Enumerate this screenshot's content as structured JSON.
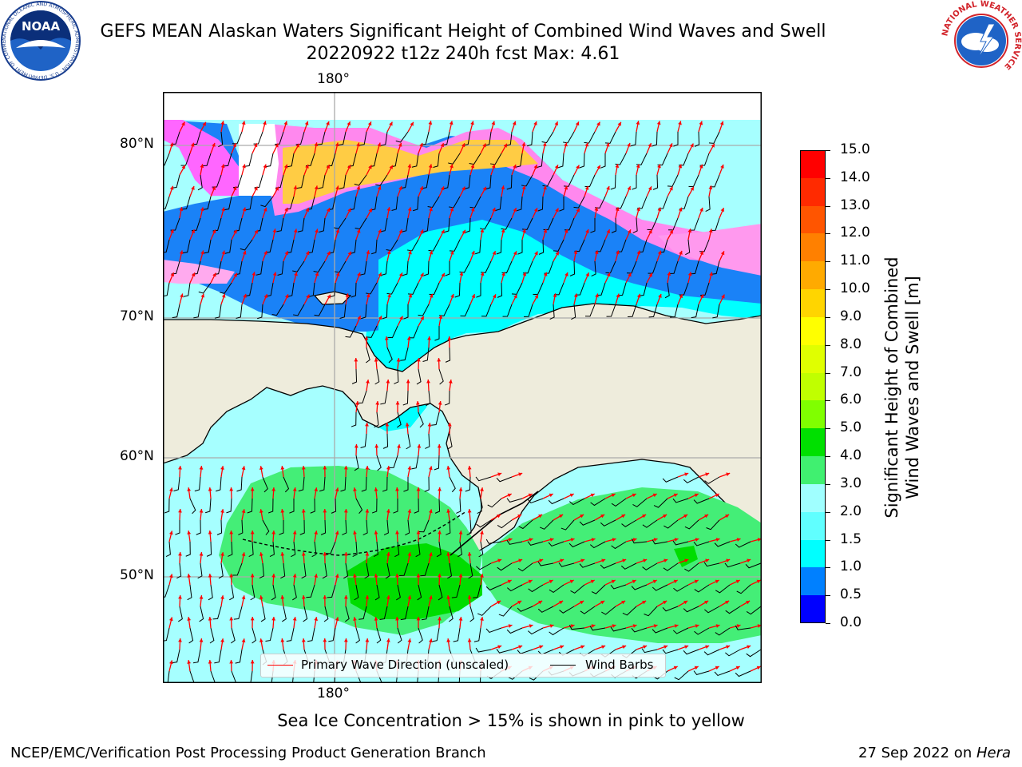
{
  "header": {
    "title_line1": "GEFS MEAN Alaskan Waters Significant Height of Combined Wind Waves and Swell",
    "title_line2": "20220922 t12z 240h fcst   Max: 4.61"
  },
  "logos": {
    "left": {
      "name": "noaa-logo",
      "text": "NOAA",
      "ring_text": "NATIONAL OCEANIC AND ATMOSPHERIC ADMINISTRATION · U.S. DEPARTMENT OF COMMERCE"
    },
    "right": {
      "name": "nws-logo",
      "ring_text": "NATIONAL WEATHER SERVICE"
    }
  },
  "map": {
    "lon_label_top": "180°",
    "lon_label_bottom": "180°",
    "lat_labels": [
      "80°N",
      "70°N",
      "60°N",
      "50°N"
    ],
    "colors": {
      "land": "#eeecdc",
      "coast": "#000000",
      "grid": "#aaaaaa",
      "wave_arrow": "#ff0000",
      "wind_barb": "#000000"
    }
  },
  "colorbar": {
    "label_line1": "Significant Height of Combined",
    "label_line2": "Wind Waves and Swell [m]",
    "ticks": [
      "15.0",
      "14.0",
      "13.0",
      "12.0",
      "11.0",
      "10.0",
      "9.0",
      "8.0",
      "7.0",
      "6.0",
      "5.0",
      "4.0",
      "3.0",
      "2.0",
      "1.5",
      "1.0",
      "0.5",
      "0.0"
    ],
    "colors_top_to_bottom": [
      "#ff0000",
      "#ff2a00",
      "#ff5500",
      "#ff8000",
      "#ffaa00",
      "#ffd500",
      "#ffff00",
      "#e0ff00",
      "#c0ff00",
      "#80ff00",
      "#00e000",
      "#40f070",
      "#a0ffff",
      "#60ffff",
      "#00ffff",
      "#0080ff",
      "#0000ff"
    ]
  },
  "legend": {
    "wave_label": "Primary Wave Direction (unscaled)",
    "barb_label": "Wind Barbs"
  },
  "note": "Sea Ice Concentration > 15% is shown in pink to yellow",
  "footer": {
    "left": "NCEP/EMC/Verification Post Processing Product Generation Branch",
    "right_prefix": "27 Sep 2022 on ",
    "right_machine": "Hera"
  }
}
